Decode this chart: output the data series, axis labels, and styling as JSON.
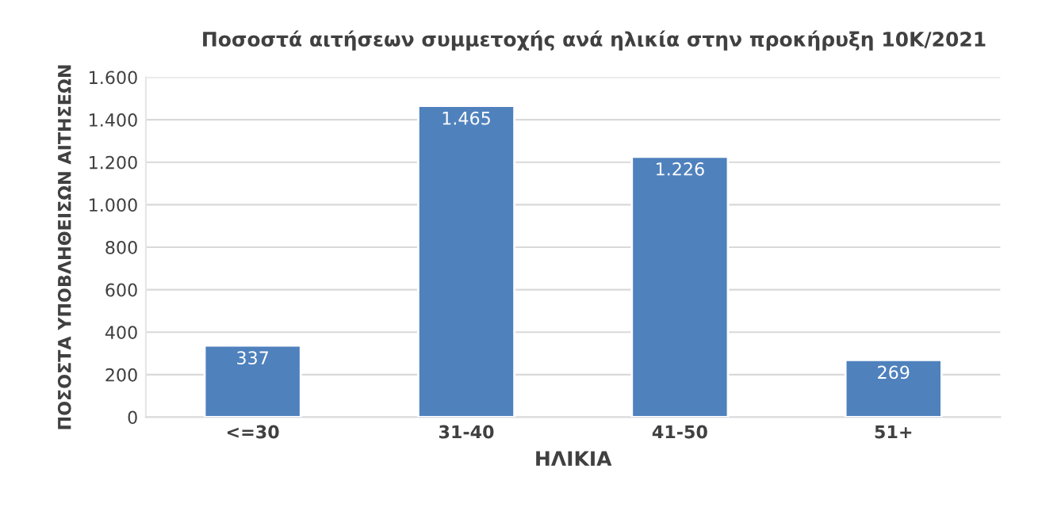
{
  "chart_data": {
    "type": "bar",
    "title": "Ποσοστά αιτήσεων συμμετοχής ανά ηλικία στην προκήρυξη 10Κ/2021",
    "xlabel": "ΗΛΙΚΙΑ",
    "ylabel": "ΠΟΣΟΣΤΑ ΥΠΟΒΛΗΘΕΙΣΩΝ ΑΙΤΗΣΕΩΝ",
    "categories": [
      "<=30",
      "31-40",
      "41-50",
      "51+"
    ],
    "values": [
      337,
      1465,
      1226,
      269
    ],
    "value_labels": [
      "337",
      "1.465",
      "1.226",
      "269"
    ],
    "color": "#4f81bd",
    "ylim": [
      0,
      1600
    ],
    "yticks": [
      0,
      200,
      400,
      600,
      800,
      {
        "value": 1000,
        "label": "1.000"
      },
      {
        "value": 1200,
        "label": "1.200"
      },
      {
        "value": 1400,
        "label": "1.400"
      },
      {
        "value": 1600,
        "label": "1.600"
      }
    ],
    "grid": "y",
    "legend": false
  }
}
